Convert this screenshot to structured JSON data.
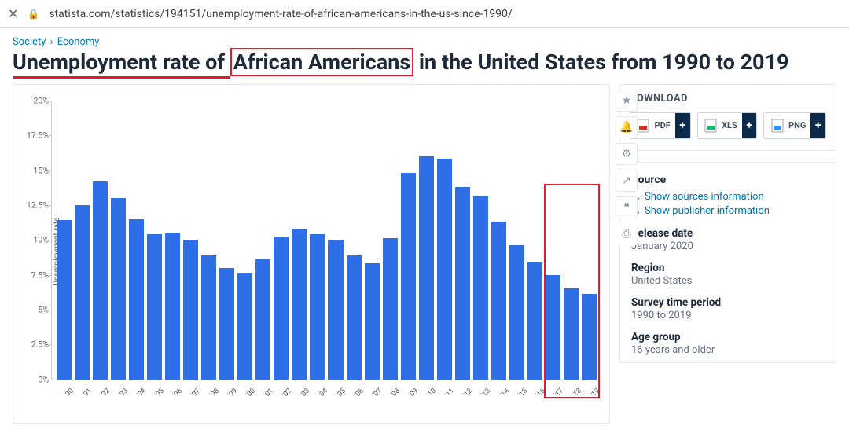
{
  "browser": {
    "url": "statista.com/statistics/194151/unemployment-rate-of-african-americans-in-the-us-since-1990/"
  },
  "breadcrumbs": {
    "a": "Society",
    "sep": "›",
    "b": "Economy"
  },
  "title": {
    "part1": "Unemployment rate of ",
    "highlight": "African Americans",
    "part2": " in the United States from 1990 to 2019"
  },
  "chart": {
    "type": "bar",
    "y_label": "Unemployment rate",
    "ymin": 0,
    "ymax": 20,
    "yticks": [
      0,
      2.5,
      5,
      7.5,
      10,
      12.5,
      15,
      17.5,
      20
    ],
    "ytick_labels": [
      "0%",
      "2.5%",
      "5%",
      "7.5%",
      "10%",
      "12.5%",
      "15%",
      "17.5%",
      "20%"
    ],
    "categories": [
      "'90",
      "'91",
      "'92",
      "'93",
      "'94",
      "'95",
      "'96",
      "'97",
      "'98",
      "'99",
      "'00",
      "'01",
      "'02",
      "'03",
      "'04",
      "'05",
      "'06",
      "'07",
      "'08",
      "'09",
      "'10",
      "'11",
      "'12",
      "'13",
      "'14",
      "'15",
      "'16",
      "'17",
      "'18",
      "'19"
    ],
    "values": [
      11.4,
      12.5,
      14.2,
      13.0,
      11.5,
      10.4,
      10.5,
      10.0,
      8.9,
      8.0,
      7.6,
      8.6,
      10.2,
      10.8,
      10.4,
      10.0,
      8.9,
      8.3,
      10.1,
      14.8,
      16.0,
      15.8,
      13.8,
      13.1,
      11.3,
      9.6,
      8.4,
      7.5,
      6.5,
      6.1
    ],
    "bar_color": "#2e6fe8",
    "background_color": "#ffffff",
    "axis_color": "#cccccc",
    "label_fontsize": 10,
    "highlight_box": {
      "from_index": 27,
      "to_index": 29,
      "color": "#e01b2b"
    }
  },
  "download": {
    "heading": "DOWNLOAD",
    "buttons": [
      {
        "label": "PDF",
        "icon_color": "#d92d20"
      },
      {
        "label": "XLS",
        "icon_color": "#12b76a"
      },
      {
        "label": "PNG",
        "icon_color": "#2e90fa"
      }
    ]
  },
  "source_panel": {
    "heading": "Source",
    "link1": "Show sources information",
    "link2": "Show publisher information",
    "items": [
      {
        "k": "Release date",
        "v": "January 2020"
      },
      {
        "k": "Region",
        "v": "United States"
      },
      {
        "k": "Survey time period",
        "v": "1990 to 2019"
      },
      {
        "k": "Age group",
        "v": "16 years and older"
      }
    ]
  }
}
